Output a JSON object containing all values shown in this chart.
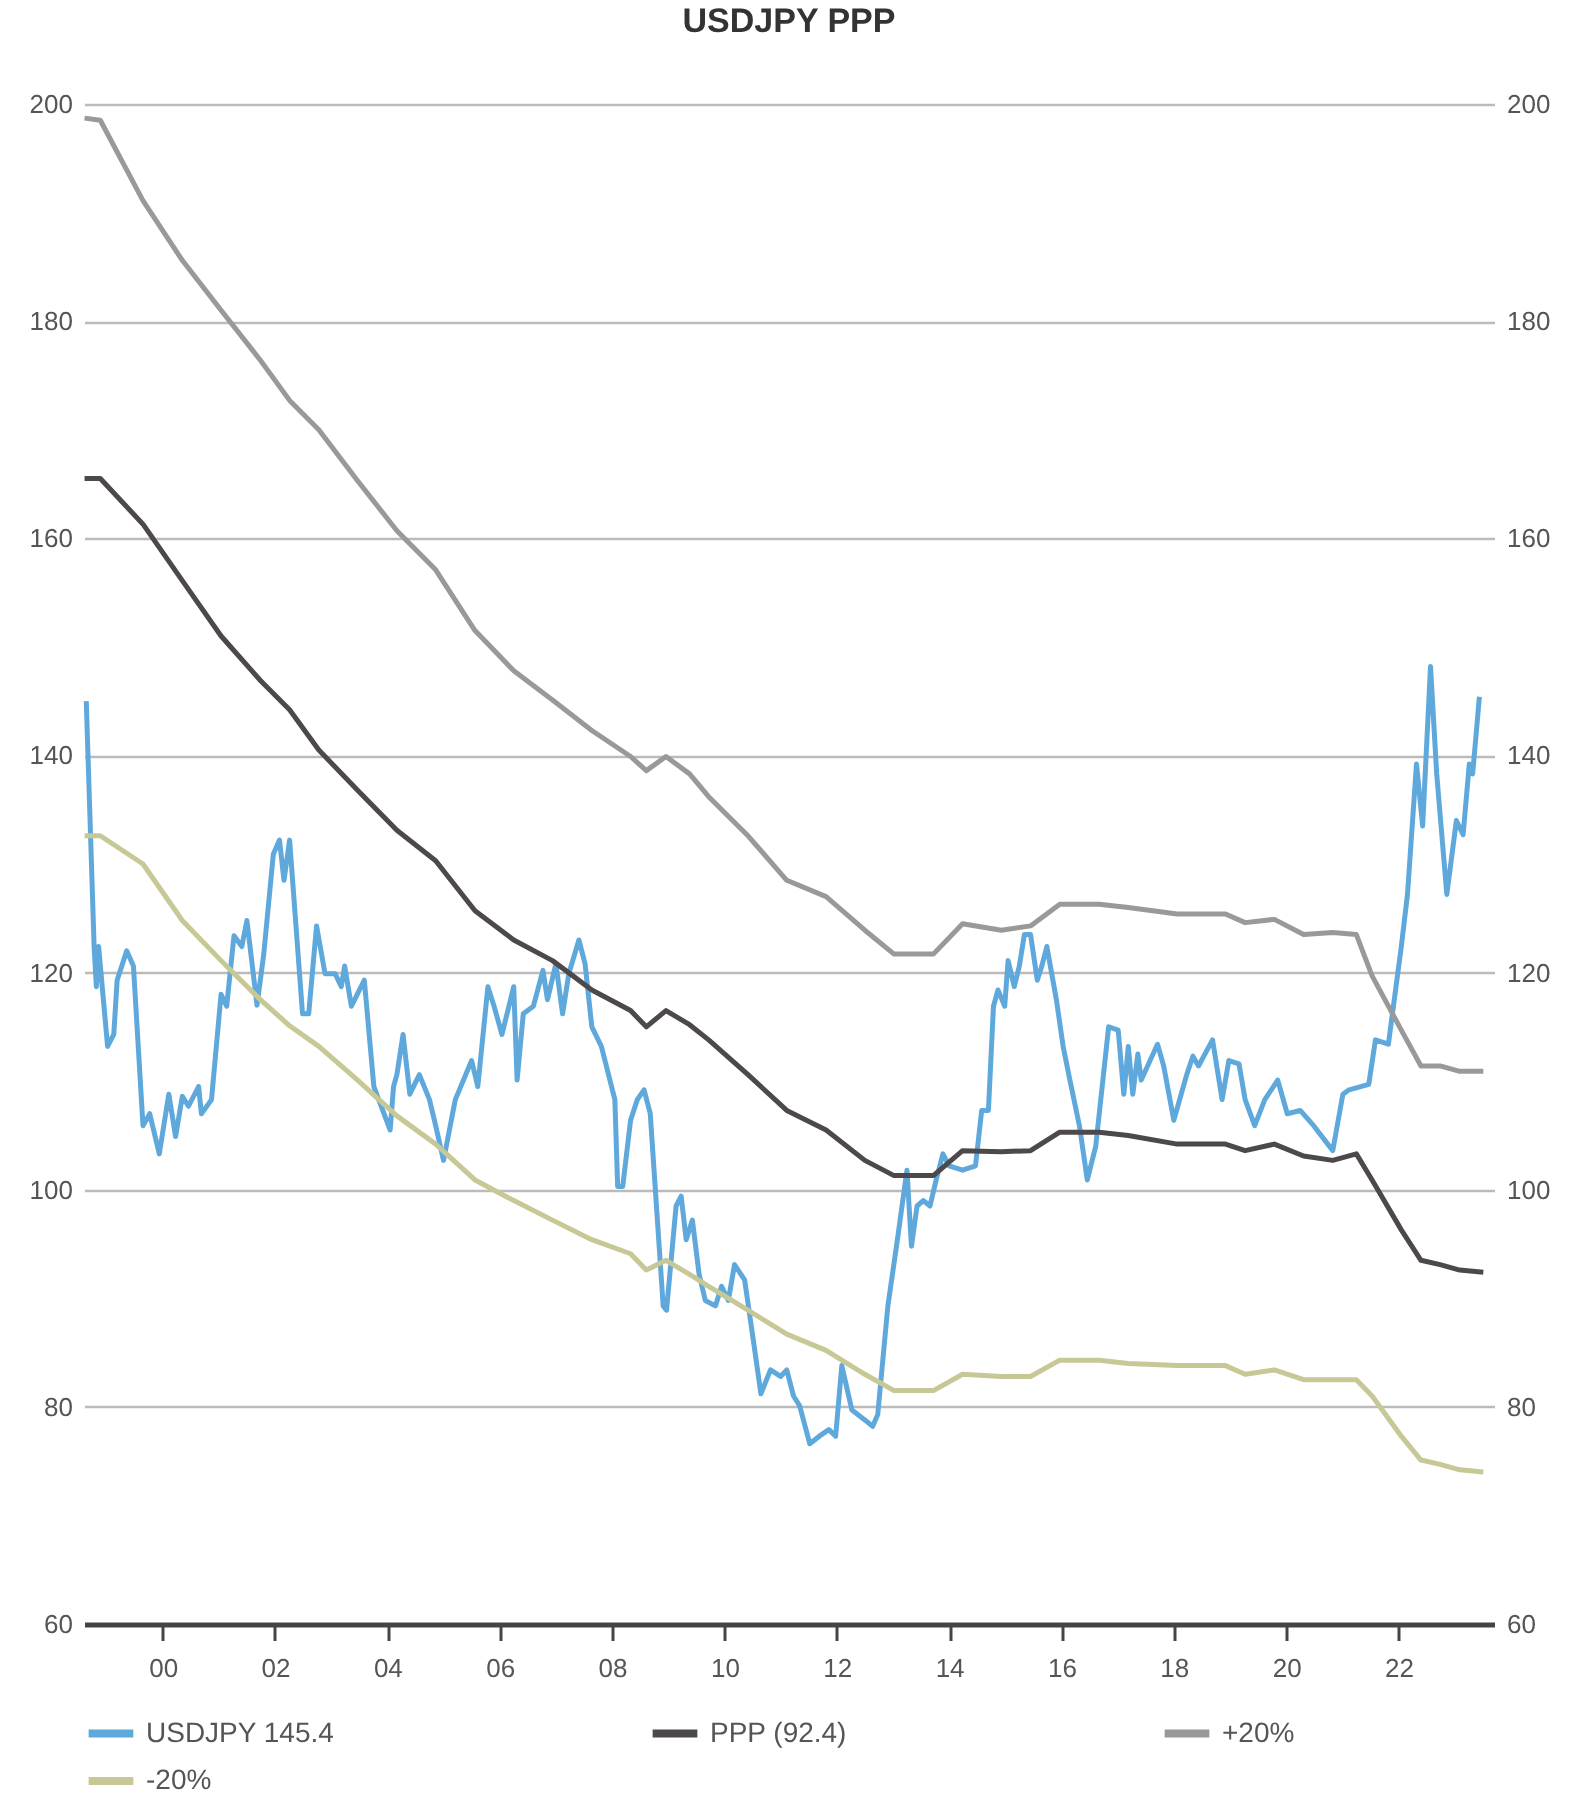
{
  "chart_data": {
    "type": "line",
    "title": "USDJPY PPP",
    "x": [
      1998.61,
      1998.89,
      1999.65,
      2000.35,
      2001.04,
      2001.74,
      2002.26,
      2002.78,
      2003.47,
      2004.17,
      2004.86,
      2005.56,
      2006.25,
      2006.94,
      2007.64,
      2008.33,
      2008.61,
      2008.96,
      2009.38,
      2009.72,
      2010.42,
      2011.11,
      2011.81,
      2012.5,
      2013.02,
      2013.72,
      2014.24,
      2014.93,
      2015.45,
      2015.97,
      2016.67,
      2017.19,
      2018.06,
      2018.92,
      2019.27,
      2019.79,
      2020.31,
      2020.83,
      2021.25,
      2021.53,
      2022.05,
      2022.4,
      2022.74,
      2023.09,
      2023.51
    ],
    "series": [
      {
        "name": "USDJPY 145.4",
        "color": "#5fa8dc",
        "x": [
          1998.64,
          1998.78,
          1998.82,
          1998.86,
          1999.02,
          1999.13,
          1999.19,
          1999.36,
          1999.48,
          1999.65,
          1999.77,
          1999.94,
          2000.11,
          2000.23,
          2000.35,
          2000.46,
          2000.64,
          2000.69,
          2000.87,
          2001.04,
          2001.14,
          2001.27,
          2001.41,
          2001.5,
          2001.68,
          2001.8,
          2001.97,
          2002.08,
          2002.16,
          2002.26,
          2002.49,
          2002.6,
          2002.74,
          2002.89,
          2003.07,
          2003.18,
          2003.24,
          2003.36,
          2003.59,
          2003.76,
          2004.05,
          2004.11,
          2004.17,
          2004.28,
          2004.4,
          2004.57,
          2004.75,
          2004.86,
          2005.0,
          2005.21,
          2005.5,
          2005.61,
          2005.79,
          2005.9,
          2006.04,
          2006.25,
          2006.31,
          2006.42,
          2006.6,
          2006.77,
          2006.85,
          2007.0,
          2007.12,
          2007.23,
          2007.41,
          2007.52,
          2007.64,
          2007.81,
          2008.05,
          2008.1,
          2008.19,
          2008.33,
          2008.45,
          2008.57,
          2008.68,
          2008.91,
          2008.97,
          2009.14,
          2009.23,
          2009.32,
          2009.43,
          2009.55,
          2009.66,
          2009.84,
          2009.95,
          2010.07,
          2010.18,
          2010.36,
          2010.53,
          2010.65,
          2010.82,
          2011.0,
          2011.11,
          2011.23,
          2011.34,
          2011.52,
          2011.69,
          2011.86,
          2011.98,
          2012.09,
          2012.27,
          2012.5,
          2012.64,
          2012.73,
          2012.91,
          2013.08,
          2013.25,
          2013.33,
          2013.43,
          2013.54,
          2013.66,
          2013.77,
          2013.89,
          2014.0,
          2014.24,
          2014.47,
          2014.58,
          2014.7,
          2014.79,
          2014.87,
          2014.99,
          2015.05,
          2015.16,
          2015.25,
          2015.34,
          2015.45,
          2015.57,
          2015.65,
          2015.74,
          2015.91,
          2016.03,
          2016.15,
          2016.32,
          2016.46,
          2016.61,
          2016.84,
          2017.01,
          2017.11,
          2017.19,
          2017.27,
          2017.36,
          2017.42,
          2017.71,
          2017.82,
          2018.0,
          2018.23,
          2018.34,
          2018.44,
          2018.69,
          2018.86,
          2018.98,
          2019.16,
          2019.27,
          2019.44,
          2019.62,
          2019.85,
          2020.02,
          2020.25,
          2020.49,
          2020.83,
          2021.01,
          2021.12,
          2021.47,
          2021.59,
          2021.82,
          2022.05,
          2022.16,
          2022.32,
          2022.43,
          2022.57,
          2022.68,
          2022.86,
          2023.03,
          2023.15,
          2023.26,
          2023.32,
          2023.44
        ],
        "values": [
          145,
          122.4,
          118.7,
          122.4,
          113.2,
          114.3,
          119.3,
          122,
          120.6,
          105.9,
          107,
          103.3,
          108.8,
          104.9,
          108.6,
          107.7,
          109.5,
          107,
          108.3,
          118,
          116.9,
          123.4,
          122.4,
          124.8,
          117,
          121.7,
          130.9,
          132.2,
          128.5,
          132.2,
          116.2,
          116.2,
          124.3,
          119.9,
          119.9,
          118.7,
          120.6,
          116.9,
          119.3,
          109.5,
          105.5,
          109.5,
          110.6,
          114.3,
          108.8,
          110.6,
          108.3,
          105.9,
          102.7,
          108.3,
          111.9,
          109.5,
          118.7,
          116.9,
          114.3,
          118.7,
          110.1,
          116.2,
          116.9,
          120.2,
          117.5,
          120.8,
          116.2,
          119.9,
          123,
          120.8,
          115,
          113.2,
          108.3,
          100.3,
          100.3,
          106.4,
          108.3,
          109.2,
          107,
          89.3,
          88.9,
          98.5,
          99.4,
          95.4,
          97.2,
          92.2,
          89.8,
          89.3,
          91.1,
          89.8,
          93.1,
          91.7,
          85.6,
          81.2,
          83.4,
          82.8,
          83.4,
          81,
          80.1,
          76.6,
          77.3,
          77.9,
          77.3,
          83.8,
          79.7,
          78.8,
          78.2,
          79.3,
          89.3,
          95.4,
          101.8,
          94.8,
          98.5,
          99,
          98.5,
          100.9,
          103.3,
          102.2,
          101.8,
          102.2,
          107.3,
          107.3,
          116.9,
          118.4,
          116.9,
          121.1,
          118.7,
          120.6,
          123.5,
          123.5,
          119.3,
          120.6,
          122.4,
          117.5,
          113.2,
          110.1,
          105.9,
          100.9,
          104,
          115,
          114.7,
          108.8,
          113.2,
          108.8,
          112.5,
          110.1,
          113.4,
          111.4,
          106.4,
          110.6,
          112.3,
          111.4,
          113.8,
          108.3,
          111.9,
          111.6,
          108.3,
          105.9,
          108.3,
          110.1,
          107,
          107.3,
          105.9,
          103.6,
          108.8,
          109.2,
          109.7,
          113.8,
          113.4,
          122.4,
          127.2,
          139.2,
          133.5,
          148.2,
          138.3,
          127.2,
          134,
          132.7,
          139.2,
          138.3,
          145.4
        ]
      },
      {
        "name": "PPP (92.4)",
        "color": "#4d4849",
        "values": [
          165.5,
          165.5,
          161.3,
          156.1,
          151,
          146.9,
          144.2,
          140.5,
          136.8,
          133.1,
          130.3,
          125.7,
          123,
          121.1,
          118.4,
          116.5,
          115,
          116.5,
          115.2,
          113.8,
          110.6,
          107.3,
          105.5,
          102.7,
          101.3,
          101.3,
          103.6,
          103.5,
          103.6,
          105.3,
          105.3,
          105,
          104.2,
          104.2,
          103.6,
          104.2,
          103.1,
          102.7,
          103.3,
          100.9,
          96.3,
          93.5,
          93.1,
          92.6,
          92.4
        ]
      },
      {
        "name": "+20%",
        "color": "#999999",
        "values": [
          198.7,
          198.5,
          191.1,
          185.6,
          181,
          176.4,
          172.7,
          170,
          165.3,
          160.7,
          157.1,
          151.5,
          147.8,
          145.1,
          142.3,
          139.9,
          138.6,
          139.9,
          138.3,
          136.2,
          132.6,
          128.5,
          127,
          123.9,
          121.7,
          121.7,
          124.5,
          123.9,
          124.3,
          126.3,
          126.3,
          126,
          125.4,
          125.4,
          124.6,
          124.9,
          123.5,
          123.7,
          123.5,
          119.7,
          114.7,
          111.4,
          111.4,
          110.9,
          110.9
        ]
      },
      {
        "name": "-20%",
        "color": "#c8c896",
        "values": [
          132.6,
          132.6,
          130,
          124.8,
          121.1,
          117.5,
          115.1,
          113.2,
          110.1,
          106.8,
          104.2,
          100.9,
          99,
          97.2,
          95.4,
          94.1,
          92.6,
          93.5,
          92.2,
          91.1,
          88.9,
          86.7,
          85.2,
          83,
          81.5,
          81.5,
          83,
          82.8,
          82.8,
          84.3,
          84.3,
          84,
          83.8,
          83.8,
          83,
          83.4,
          82.5,
          82.5,
          82.5,
          81,
          77.3,
          75.1,
          74.7,
          74.2,
          74
        ]
      }
    ],
    "xlim": [
      1998.6,
      2023.7
    ],
    "xticks": [
      {
        "value": 2000,
        "label": "00"
      },
      {
        "value": 2002,
        "label": "02"
      },
      {
        "value": 2004,
        "label": "04"
      },
      {
        "value": 2006,
        "label": "06"
      },
      {
        "value": 2008,
        "label": "08"
      },
      {
        "value": 2010,
        "label": "10"
      },
      {
        "value": 2012,
        "label": "12"
      },
      {
        "value": 2014,
        "label": "14"
      },
      {
        "value": 2016,
        "label": "16"
      },
      {
        "value": 2018,
        "label": "18"
      },
      {
        "value": 2020,
        "label": "20"
      },
      {
        "value": 2022,
        "label": "22"
      }
    ],
    "ylim": [
      60,
      200
    ],
    "yticks": [
      60,
      80,
      100,
      120,
      140,
      160,
      180,
      200
    ],
    "y2lim": [
      60,
      200
    ],
    "y2ticks": [
      60,
      80,
      100,
      120,
      140,
      160,
      180,
      200
    ],
    "grid": "y",
    "legend": "bottom",
    "line_style": "solid"
  }
}
